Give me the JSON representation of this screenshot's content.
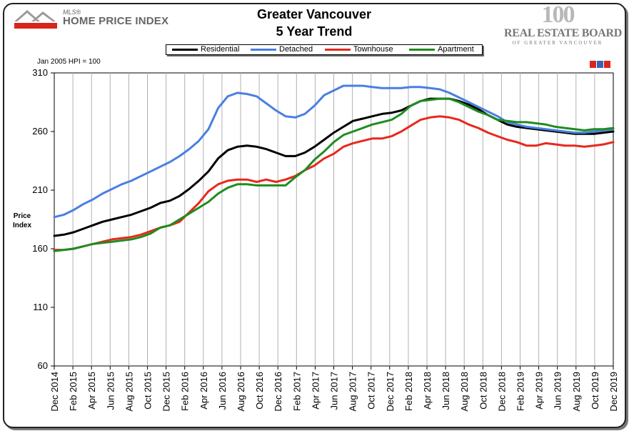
{
  "header": {
    "logo_mls": "MLS®",
    "logo_hpi": "HOME PRICE INDEX",
    "title_line1": "Greater Vancouver",
    "title_line2": "5 Year Trend",
    "board_anniversary": "100",
    "board_name": "REAL ESTATE BOARD",
    "board_region": "OF GREATER VANCOUVER"
  },
  "chart_data": {
    "type": "line",
    "base_note": "Jan 2005 HPI = 100",
    "ylabel_lines": [
      "Price",
      "Index"
    ],
    "xlabel": "",
    "ylim": [
      60,
      310
    ],
    "yticks": [
      60,
      110,
      160,
      210,
      260,
      310
    ],
    "grid": "vertical",
    "legend_position": "top",
    "x_tick_labels": [
      "Dec 2014",
      "Feb 2015",
      "Apr 2015",
      "Jun 2015",
      "Aug 2015",
      "Oct 2015",
      "Dec 2015",
      "Feb 2016",
      "Apr 2016",
      "Jun 2016",
      "Aug 2016",
      "Oct 2016",
      "Dec 2016",
      "Feb 2017",
      "Apr 2017",
      "Jun 2017",
      "Aug 2017",
      "Oct 2017",
      "Dec 2017",
      "Feb 2018",
      "Apr 2018",
      "Jun 2018",
      "Aug 2018",
      "Oct 2018",
      "Dec 2018",
      "Feb 2019",
      "Apr 2019",
      "Jun 2019",
      "Aug 2019",
      "Oct 2019",
      "Dec 2019"
    ],
    "series": [
      {
        "name": "Residential",
        "color": "#000000",
        "values": [
          171,
          172,
          174,
          177,
          180,
          183,
          185,
          187,
          189,
          192,
          195,
          199,
          201,
          205,
          211,
          218,
          226,
          237,
          244,
          247,
          248,
          247,
          245,
          242,
          239,
          239,
          242,
          247,
          253,
          259,
          264,
          269,
          271,
          273,
          275,
          276,
          278,
          282,
          286,
          288,
          288,
          288,
          286,
          283,
          279,
          274,
          270,
          266,
          264,
          263,
          262,
          261,
          260,
          259,
          258,
          258,
          258,
          259,
          260
        ]
      },
      {
        "name": "Detached",
        "color": "#4a7fe0",
        "values": [
          187,
          189,
          193,
          198,
          202,
          207,
          211,
          215,
          218,
          222,
          226,
          230,
          234,
          239,
          245,
          252,
          262,
          280,
          290,
          293,
          292,
          290,
          284,
          278,
          273,
          272,
          275,
          282,
          291,
          295,
          299,
          299,
          299,
          298,
          297,
          297,
          297,
          298,
          298,
          297,
          296,
          293,
          289,
          285,
          281,
          277,
          273,
          268,
          266,
          264,
          263,
          262,
          261,
          260,
          259,
          259,
          260,
          261,
          262
        ]
      },
      {
        "name": "Townhouse",
        "color": "#e8281c",
        "values": [
          159,
          159,
          160,
          162,
          164,
          166,
          168,
          169,
          170,
          172,
          175,
          178,
          180,
          183,
          191,
          199,
          209,
          215,
          218,
          219,
          219,
          217,
          219,
          217,
          219,
          222,
          227,
          231,
          237,
          241,
          247,
          250,
          252,
          254,
          254,
          256,
          260,
          265,
          270,
          272,
          273,
          272,
          270,
          266,
          263,
          259,
          256,
          253,
          251,
          248,
          248,
          250,
          249,
          248,
          248,
          247,
          248,
          249,
          251
        ]
      },
      {
        "name": "Apartment",
        "color": "#1f8c1f",
        "values": [
          158,
          159,
          160,
          162,
          164,
          165,
          166,
          167,
          168,
          170,
          173,
          178,
          180,
          185,
          190,
          195,
          200,
          207,
          212,
          215,
          215,
          214,
          214,
          214,
          214,
          221,
          227,
          236,
          243,
          251,
          257,
          260,
          263,
          266,
          268,
          270,
          275,
          282,
          286,
          287,
          288,
          288,
          285,
          281,
          277,
          274,
          270,
          269,
          268,
          268,
          267,
          266,
          264,
          263,
          262,
          261,
          262,
          262,
          263
        ]
      }
    ]
  }
}
